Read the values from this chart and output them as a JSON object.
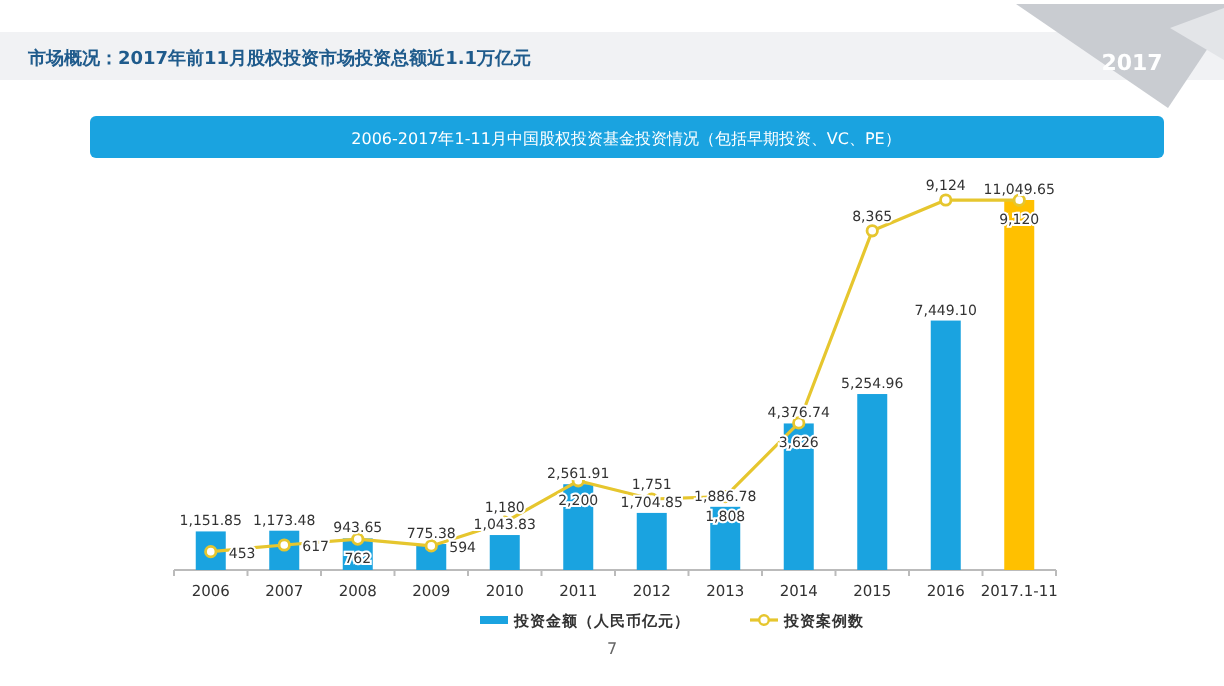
{
  "chart_data": {
    "type": "bar",
    "title": "市场概况：2017年前11月股权投资市场投资总额近1.1万亿元",
    "subtitle": "2006-2017年1-11月中国股权投资基金投资情况（包括早期投资、VC、PE）",
    "annotations": [
      "2017",
      "7"
    ],
    "categories": [
      "2006",
      "2007",
      "2008",
      "2009",
      "2010",
      "2011",
      "2012",
      "2013",
      "2014",
      "2015",
      "2016",
      "2017.1-11"
    ],
    "series": [
      {
        "name": "投资金额（人民币亿元）",
        "color": "#1aa3e0",
        "colors": [
          "#1aa3e0",
          "#1aa3e0",
          "#1aa3e0",
          "#1aa3e0",
          "#1aa3e0",
          "#1aa3e0",
          "#1aa3e0",
          "#1aa3e0",
          "#1aa3e0",
          "#1aa3e0",
          "#1aa3e0",
          "#ffc000"
        ],
        "values": [
          1151.85,
          1173.48,
          943.65,
          775.38,
          1043.83,
          2561.91,
          1704.85,
          1886.78,
          4376.74,
          5254.96,
          7449.1,
          11049.65
        ],
        "value_labels": [
          "1,151.85",
          "1,173.48",
          "943.65",
          "775.38",
          "1,043.83",
          "2,561.91",
          "1,704.85",
          "1,886.78",
          "4,376.74",
          "5,254.96",
          "7,449.10",
          "11,049.65"
        ]
      },
      {
        "name": "投资案例数",
        "type": "line",
        "axis": "y2",
        "color": "#e6c62e",
        "marker": "circle",
        "values": [
          453,
          617,
          762,
          594,
          1180,
          2200,
          1751,
          1808,
          3626,
          8365,
          9124,
          9120
        ],
        "value_labels": [
          "453",
          "617",
          "762",
          "594",
          "1,180",
          "2,200",
          "1,751",
          "1,808",
          "3,626",
          "8,365",
          "9,124",
          "9,120"
        ]
      }
    ],
    "tick_labels": "x",
    "legend": "bottom"
  }
}
